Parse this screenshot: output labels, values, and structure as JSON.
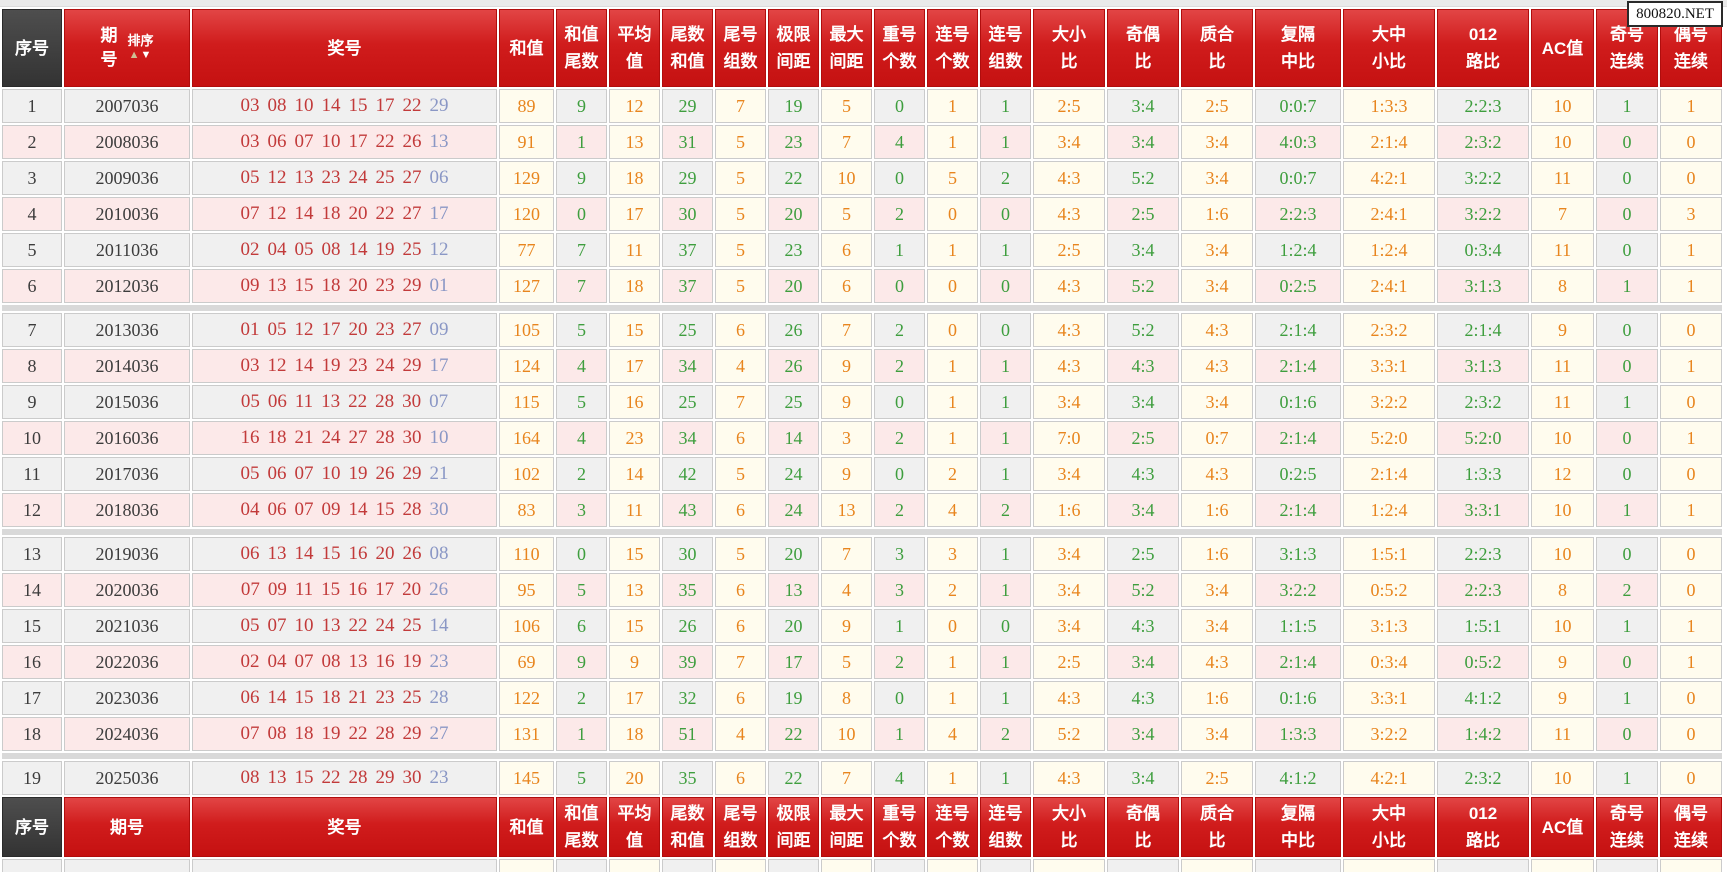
{
  "watermark": "800820.NET",
  "sort": {
    "label": "排序",
    "asc": "▲",
    "desc": "▼"
  },
  "colors": {
    "header_red": "#c51111",
    "index_header_dark": "#3a3a3a",
    "ball_red": "#c23a3a",
    "special_ball_blue": "#8a97c5",
    "value_orange": "#e8851e",
    "value_green": "#3e9e3e",
    "row_pink": "#fce9e9",
    "row_gray": "#f0f0f0",
    "cell_ivory": "#fffcee"
  },
  "columns": [
    {
      "key": "index",
      "lines": [
        "序号"
      ]
    },
    {
      "key": "period",
      "lines": [
        "期号"
      ]
    },
    {
      "key": "numbers",
      "lines": [
        "奖号"
      ]
    },
    {
      "key": "sum",
      "lines": [
        "和值"
      ]
    },
    {
      "key": "sum_tail",
      "lines": [
        "和值",
        "尾数"
      ]
    },
    {
      "key": "average",
      "lines": [
        "平均",
        "值"
      ]
    },
    {
      "key": "tail_sum",
      "lines": [
        "尾数",
        "和值"
      ]
    },
    {
      "key": "tail_groups",
      "lines": [
        "尾号",
        "组数"
      ]
    },
    {
      "key": "limit_span",
      "lines": [
        "极限",
        "间距"
      ]
    },
    {
      "key": "max_span",
      "lines": [
        "最大",
        "间距"
      ]
    },
    {
      "key": "repeat_count",
      "lines": [
        "重号",
        "个数"
      ]
    },
    {
      "key": "consecutive_count",
      "lines": [
        "连号",
        "个数"
      ]
    },
    {
      "key": "consecutive_groups",
      "lines": [
        "连号",
        "组数"
      ]
    },
    {
      "key": "big_small_ratio",
      "lines": [
        "大小",
        "比"
      ]
    },
    {
      "key": "odd_even_ratio",
      "lines": [
        "奇偶",
        "比"
      ]
    },
    {
      "key": "prime_composite_ratio",
      "lines": [
        "质合",
        "比"
      ]
    },
    {
      "key": "repeat_skip_mid_ratio",
      "lines": [
        "复隔",
        "中比"
      ]
    },
    {
      "key": "big_mid_small_ratio",
      "lines": [
        "大中",
        "小比"
      ]
    },
    {
      "key": "route_012_ratio",
      "lines": [
        "012",
        "路比"
      ]
    },
    {
      "key": "ac_value",
      "lines": [
        "AC值"
      ]
    },
    {
      "key": "odd_streak",
      "lines": [
        "奇号",
        "连续"
      ]
    },
    {
      "key": "even_streak",
      "lines": [
        "偶号",
        "连续"
      ]
    }
  ],
  "group_size": 6,
  "rows": [
    {
      "index": "1",
      "period": "2007036",
      "balls": [
        "03",
        "08",
        "10",
        "14",
        "15",
        "17",
        "22"
      ],
      "special": "29",
      "values": [
        "89",
        "9",
        "12",
        "29",
        "7",
        "19",
        "5",
        "0",
        "1",
        "1",
        "2:5",
        "3:4",
        "2:5",
        "0:0:7",
        "1:3:3",
        "2:2:3",
        "10",
        "1",
        "1"
      ]
    },
    {
      "index": "2",
      "period": "2008036",
      "balls": [
        "03",
        "06",
        "07",
        "10",
        "17",
        "22",
        "26"
      ],
      "special": "13",
      "values": [
        "91",
        "1",
        "13",
        "31",
        "5",
        "23",
        "7",
        "4",
        "1",
        "1",
        "3:4",
        "3:4",
        "3:4",
        "4:0:3",
        "2:1:4",
        "2:3:2",
        "10",
        "0",
        "0"
      ]
    },
    {
      "index": "3",
      "period": "2009036",
      "balls": [
        "05",
        "12",
        "13",
        "23",
        "24",
        "25",
        "27"
      ],
      "special": "06",
      "values": [
        "129",
        "9",
        "18",
        "29",
        "5",
        "22",
        "10",
        "0",
        "5",
        "2",
        "4:3",
        "5:2",
        "3:4",
        "0:0:7",
        "4:2:1",
        "3:2:2",
        "11",
        "0",
        "0"
      ]
    },
    {
      "index": "4",
      "period": "2010036",
      "balls": [
        "07",
        "12",
        "14",
        "18",
        "20",
        "22",
        "27"
      ],
      "special": "17",
      "values": [
        "120",
        "0",
        "17",
        "30",
        "5",
        "20",
        "5",
        "2",
        "0",
        "0",
        "4:3",
        "2:5",
        "1:6",
        "2:2:3",
        "2:4:1",
        "3:2:2",
        "7",
        "0",
        "3"
      ]
    },
    {
      "index": "5",
      "period": "2011036",
      "balls": [
        "02",
        "04",
        "05",
        "08",
        "14",
        "19",
        "25"
      ],
      "special": "12",
      "values": [
        "77",
        "7",
        "11",
        "37",
        "5",
        "23",
        "6",
        "1",
        "1",
        "1",
        "2:5",
        "3:4",
        "3:4",
        "1:2:4",
        "1:2:4",
        "0:3:4",
        "11",
        "0",
        "1"
      ]
    },
    {
      "index": "6",
      "period": "2012036",
      "balls": [
        "09",
        "13",
        "15",
        "18",
        "20",
        "23",
        "29"
      ],
      "special": "01",
      "values": [
        "127",
        "7",
        "18",
        "37",
        "5",
        "20",
        "6",
        "0",
        "0",
        "0",
        "4:3",
        "5:2",
        "3:4",
        "0:2:5",
        "2:4:1",
        "3:1:3",
        "8",
        "1",
        "1"
      ]
    },
    {
      "index": "7",
      "period": "2013036",
      "balls": [
        "01",
        "05",
        "12",
        "17",
        "20",
        "23",
        "27"
      ],
      "special": "09",
      "values": [
        "105",
        "5",
        "15",
        "25",
        "6",
        "26",
        "7",
        "2",
        "0",
        "0",
        "4:3",
        "5:2",
        "4:3",
        "2:1:4",
        "2:3:2",
        "2:1:4",
        "9",
        "0",
        "0"
      ]
    },
    {
      "index": "8",
      "period": "2014036",
      "balls": [
        "03",
        "12",
        "14",
        "19",
        "23",
        "24",
        "29"
      ],
      "special": "17",
      "values": [
        "124",
        "4",
        "17",
        "34",
        "4",
        "26",
        "9",
        "2",
        "1",
        "1",
        "4:3",
        "4:3",
        "4:3",
        "2:1:4",
        "3:3:1",
        "3:1:3",
        "11",
        "0",
        "1"
      ]
    },
    {
      "index": "9",
      "period": "2015036",
      "balls": [
        "05",
        "06",
        "11",
        "13",
        "22",
        "28",
        "30"
      ],
      "special": "07",
      "values": [
        "115",
        "5",
        "16",
        "25",
        "7",
        "25",
        "9",
        "0",
        "1",
        "1",
        "3:4",
        "3:4",
        "3:4",
        "0:1:6",
        "3:2:2",
        "2:3:2",
        "11",
        "1",
        "0"
      ]
    },
    {
      "index": "10",
      "period": "2016036",
      "balls": [
        "16",
        "18",
        "21",
        "24",
        "27",
        "28",
        "30"
      ],
      "special": "10",
      "values": [
        "164",
        "4",
        "23",
        "34",
        "6",
        "14",
        "3",
        "2",
        "1",
        "1",
        "7:0",
        "2:5",
        "0:7",
        "2:1:4",
        "5:2:0",
        "5:2:0",
        "10",
        "0",
        "1"
      ]
    },
    {
      "index": "11",
      "period": "2017036",
      "balls": [
        "05",
        "06",
        "07",
        "10",
        "19",
        "26",
        "29"
      ],
      "special": "21",
      "values": [
        "102",
        "2",
        "14",
        "42",
        "5",
        "24",
        "9",
        "0",
        "2",
        "1",
        "3:4",
        "4:3",
        "4:3",
        "0:2:5",
        "2:1:4",
        "1:3:3",
        "12",
        "0",
        "0"
      ]
    },
    {
      "index": "12",
      "period": "2018036",
      "balls": [
        "04",
        "06",
        "07",
        "09",
        "14",
        "15",
        "28"
      ],
      "special": "30",
      "values": [
        "83",
        "3",
        "11",
        "43",
        "6",
        "24",
        "13",
        "2",
        "4",
        "2",
        "1:6",
        "3:4",
        "1:6",
        "2:1:4",
        "1:2:4",
        "3:3:1",
        "10",
        "1",
        "1"
      ]
    },
    {
      "index": "13",
      "period": "2019036",
      "balls": [
        "06",
        "13",
        "14",
        "15",
        "16",
        "20",
        "26"
      ],
      "special": "08",
      "values": [
        "110",
        "0",
        "15",
        "30",
        "5",
        "20",
        "7",
        "3",
        "3",
        "1",
        "3:4",
        "2:5",
        "1:6",
        "3:1:3",
        "1:5:1",
        "2:2:3",
        "10",
        "0",
        "0"
      ]
    },
    {
      "index": "14",
      "period": "2020036",
      "balls": [
        "07",
        "09",
        "11",
        "15",
        "16",
        "17",
        "20"
      ],
      "special": "26",
      "values": [
        "95",
        "5",
        "13",
        "35",
        "6",
        "13",
        "4",
        "3",
        "2",
        "1",
        "3:4",
        "5:2",
        "3:4",
        "3:2:2",
        "0:5:2",
        "2:2:3",
        "8",
        "2",
        "0"
      ]
    },
    {
      "index": "15",
      "period": "2021036",
      "balls": [
        "05",
        "07",
        "10",
        "13",
        "22",
        "24",
        "25"
      ],
      "special": "14",
      "values": [
        "106",
        "6",
        "15",
        "26",
        "6",
        "20",
        "9",
        "1",
        "0",
        "0",
        "3:4",
        "4:3",
        "3:4",
        "1:1:5",
        "3:1:3",
        "1:5:1",
        "10",
        "1",
        "1"
      ]
    },
    {
      "index": "16",
      "period": "2022036",
      "balls": [
        "02",
        "04",
        "07",
        "08",
        "13",
        "16",
        "19"
      ],
      "special": "23",
      "values": [
        "69",
        "9",
        "9",
        "39",
        "7",
        "17",
        "5",
        "2",
        "1",
        "1",
        "2:5",
        "3:4",
        "4:3",
        "2:1:4",
        "0:3:4",
        "0:5:2",
        "9",
        "0",
        "1"
      ]
    },
    {
      "index": "17",
      "period": "2023036",
      "balls": [
        "06",
        "14",
        "15",
        "18",
        "21",
        "23",
        "25"
      ],
      "special": "28",
      "values": [
        "122",
        "2",
        "17",
        "32",
        "6",
        "19",
        "8",
        "0",
        "1",
        "1",
        "4:3",
        "4:3",
        "1:6",
        "0:1:6",
        "3:3:1",
        "4:1:2",
        "9",
        "1",
        "0"
      ]
    },
    {
      "index": "18",
      "period": "2024036",
      "balls": [
        "07",
        "08",
        "18",
        "19",
        "22",
        "28",
        "29"
      ],
      "special": "27",
      "values": [
        "131",
        "1",
        "18",
        "51",
        "4",
        "22",
        "10",
        "1",
        "4",
        "2",
        "5:2",
        "3:4",
        "3:4",
        "1:3:3",
        "3:2:2",
        "1:4:2",
        "11",
        "0",
        "0"
      ]
    },
    {
      "index": "19",
      "period": "2025036",
      "balls": [
        "08",
        "13",
        "15",
        "22",
        "28",
        "29",
        "30"
      ],
      "special": "23",
      "values": [
        "145",
        "5",
        "20",
        "35",
        "6",
        "22",
        "7",
        "4",
        "1",
        "1",
        "4:3",
        "3:4",
        "2:5",
        "4:1:2",
        "4:2:1",
        "2:3:2",
        "10",
        "1",
        "0"
      ]
    }
  ]
}
